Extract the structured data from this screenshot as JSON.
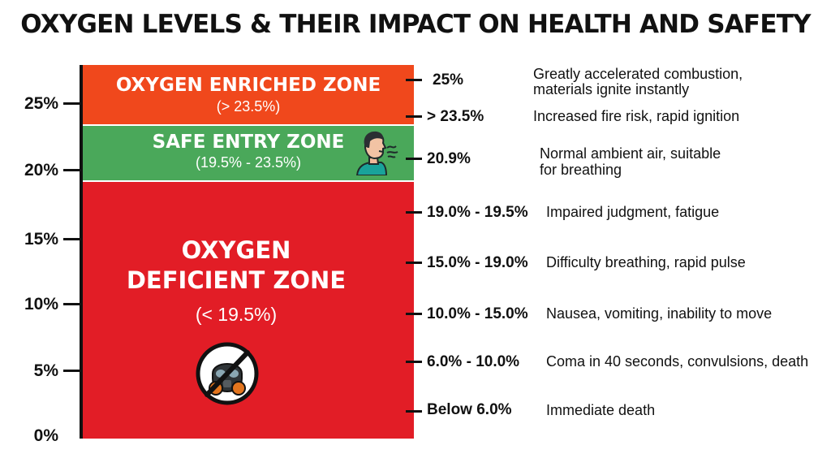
{
  "title": "OXYGEN LEVELS & THEIR IMPACT ON HEALTH AND SAFETY",
  "y_axis": {
    "ticks": [
      "25%",
      "20%",
      "15%",
      "10%",
      "5%",
      "0%"
    ]
  },
  "zones": {
    "enriched": {
      "title": "OXYGEN ENRICHED ZONE",
      "range": "(> 23.5%)",
      "color": "#f0481c"
    },
    "safe": {
      "title": "SAFE ENTRY ZONE",
      "range": "(19.5% - 23.5%)",
      "color": "#4aa85a"
    },
    "deficient": {
      "title_line1": "OXYGEN",
      "title_line2": "DEFICIENT ZONE",
      "range": "(< 19.5%)",
      "color": "#e21d26"
    }
  },
  "icons": {
    "safe": "person-breathing-icon",
    "deficient": "no-gas-mask-icon"
  },
  "levels": [
    {
      "value": "25%",
      "effect_line1": "Greatly accelerated combustion,",
      "effect_line2": "materials ignite instantly"
    },
    {
      "value": "> 23.5%",
      "effect_line1": "Increased fire risk, rapid ignition"
    },
    {
      "value": "20.9%",
      "effect_line1": "Normal ambient air, suitable",
      "effect_line2": "for breathing"
    },
    {
      "value": "19.0% - 19.5%",
      "effect_line1": "Impaired judgment, fatigue"
    },
    {
      "value": "15.0% - 19.0%",
      "effect_line1": "Difficulty breathing, rapid pulse"
    },
    {
      "value": "10.0% - 15.0%",
      "effect_line1": "Nausea, vomiting, inability to move"
    },
    {
      "value": "6.0% - 10.0%",
      "effect_line1": "Coma in 40 seconds, convulsions, death"
    },
    {
      "value": "Below 6.0%",
      "effect_line1": "Immediate death"
    }
  ]
}
